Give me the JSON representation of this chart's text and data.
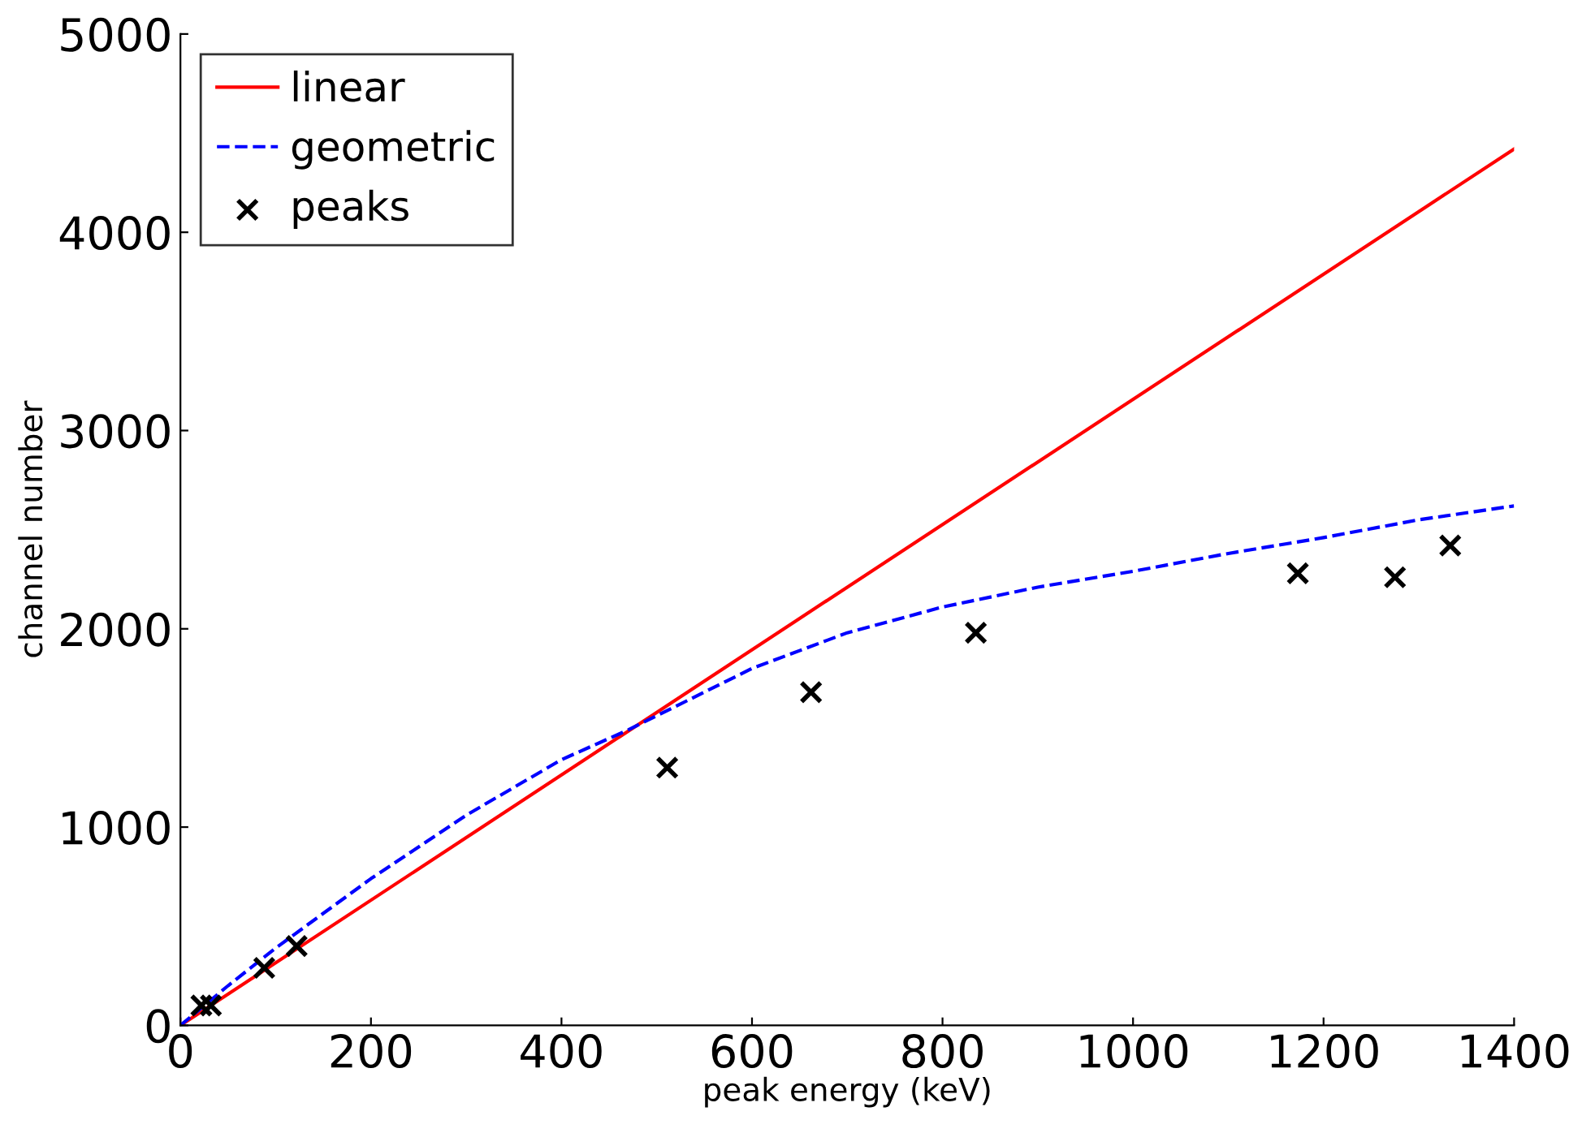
{
  "chart_data": {
    "type": "line",
    "xlabel": "peak energy (keV)",
    "ylabel": "channel number",
    "xlim": [
      0,
      1400
    ],
    "ylim": [
      0,
      5000
    ],
    "xticks": [
      0,
      200,
      400,
      600,
      800,
      1000,
      1200,
      1400
    ],
    "yticks": [
      0,
      1000,
      2000,
      3000,
      4000,
      5000
    ],
    "grid": false,
    "legend": "top left",
    "series": [
      {
        "name": "linear",
        "color": "#ff0000",
        "line_style": "solid",
        "marker": "none",
        "x": [
          0,
          1400
        ],
        "values": [
          0,
          4420
        ]
      },
      {
        "name": "geometric",
        "color": "#0000ff",
        "line_style": "dashed",
        "marker": "none",
        "x": [
          0,
          50,
          100,
          200,
          300,
          400,
          470,
          600,
          700,
          800,
          900,
          1000,
          1100,
          1200,
          1300,
          1400
        ],
        "values": [
          0,
          200,
          390,
          740,
          1060,
          1340,
          1490,
          1800,
          1980,
          2110,
          2210,
          2290,
          2380,
          2460,
          2550,
          2620
        ]
      },
      {
        "name": "peaks",
        "type": "scatter",
        "color": "#000000",
        "marker": "cross",
        "x": [
          22,
          32,
          88,
          122,
          511,
          662,
          835,
          1173,
          1275,
          1333
        ],
        "values": [
          100,
          100,
          290,
          400,
          1300,
          1680,
          1980,
          2280,
          2260,
          2420
        ]
      }
    ]
  }
}
